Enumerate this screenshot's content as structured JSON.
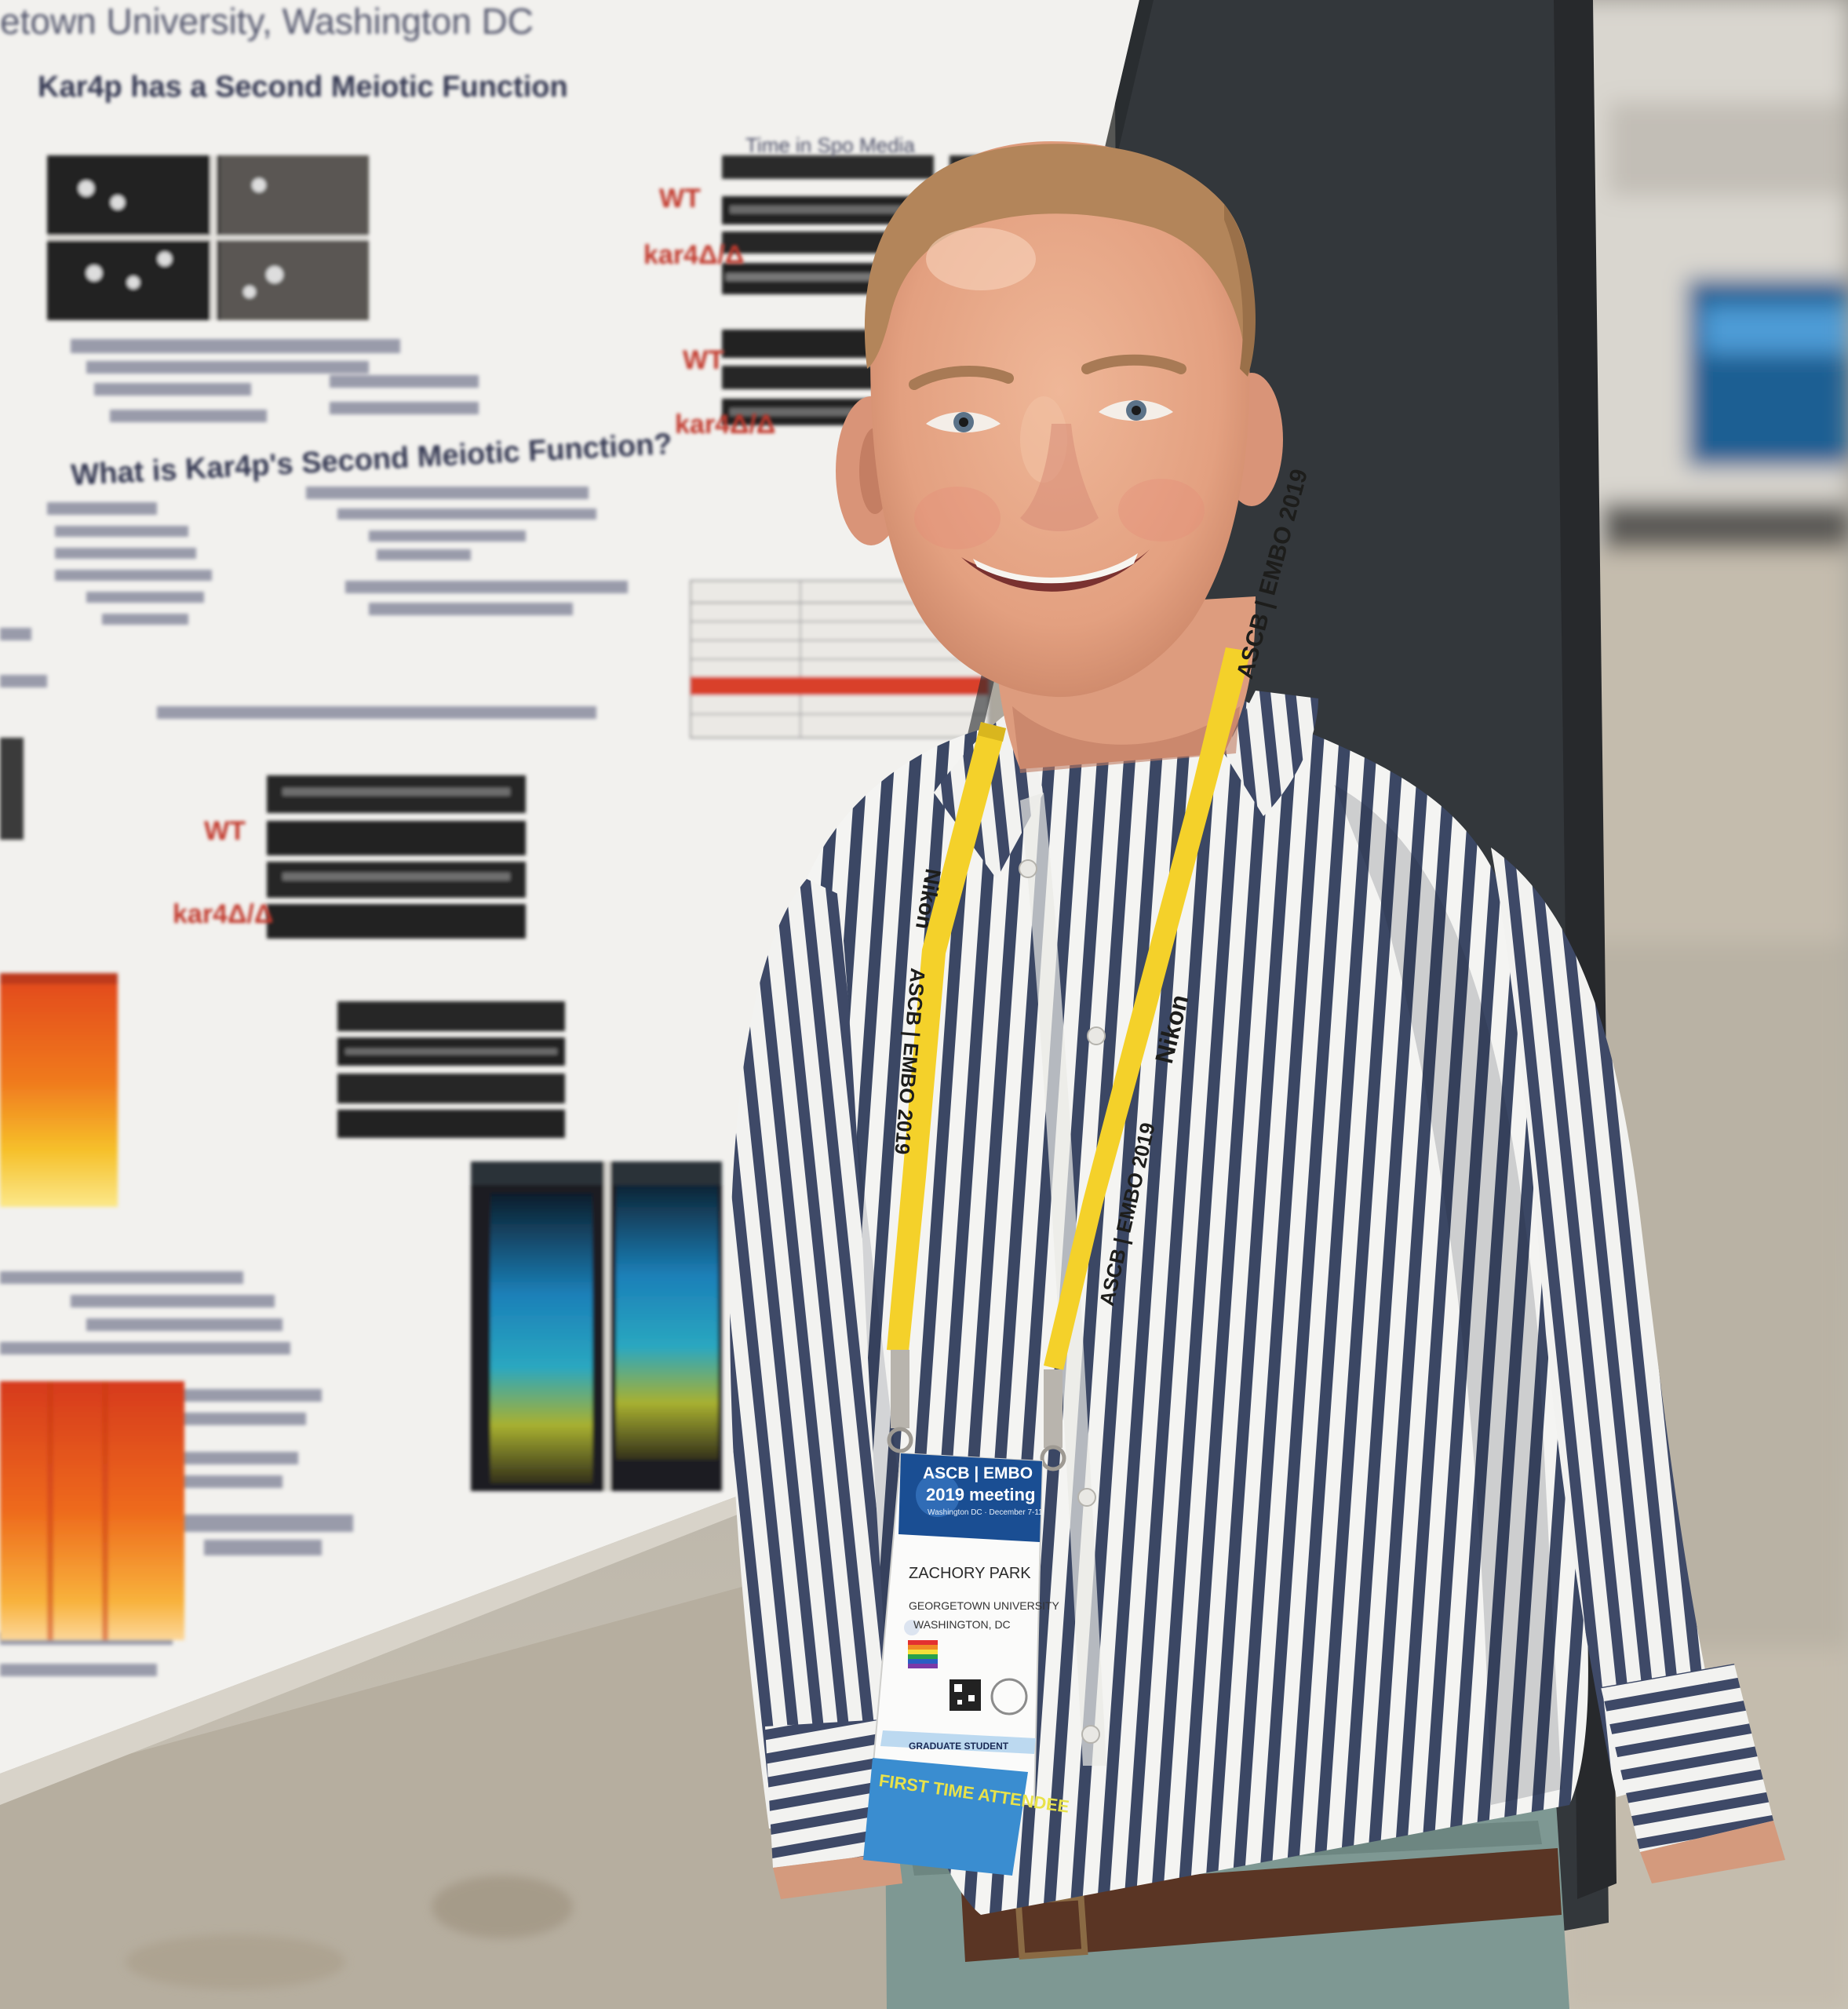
{
  "poster": {
    "title_fragment": "etown University, Washington DC",
    "heading_1": "Kar4p has a Second Meiotic Function",
    "heading_2": "What is Kar4p's Second Meiotic Function?",
    "label_wt": "WT",
    "label_mutant": "kar4Δ/Δ",
    "label_wt_2": "WT",
    "label_mutant_2": "kar4Δ/Δ",
    "label_mutant_3": "kar4Δ/Δ",
    "label_wt_3": "WT",
    "time_label": "Time in Spo Media"
  },
  "lanyard": {
    "text_left_1": "Nikon",
    "text_left_2": "ASCB | EMBO 2019",
    "text_right_1": "ASCB | EMBO 2019",
    "text_right_2": "Nikon",
    "text_right_3": "ASCB | EMBO 2019",
    "color": "#f4d12a"
  },
  "badge": {
    "org": "ASCB | EMBO",
    "meeting": "2019 meeting",
    "dates": "Washington DC · December 7-11",
    "name": "ZACHORY PARK",
    "institution": "GEORGETOWN UNIVERSITY",
    "city": "WASHINGTON, DC",
    "role": "GRADUATE STUDENT",
    "ribbon": "FIRST TIME ATTENDEE"
  },
  "colors": {
    "poster_bg": "#f2f1ee",
    "wall": "#33373b",
    "floor": "#b8b3a8",
    "shirt_stripe": "#3b4764",
    "skin": "#e7a888",
    "hair": "#b3855a",
    "pants": "#7e9893",
    "belt": "#5a3524"
  }
}
